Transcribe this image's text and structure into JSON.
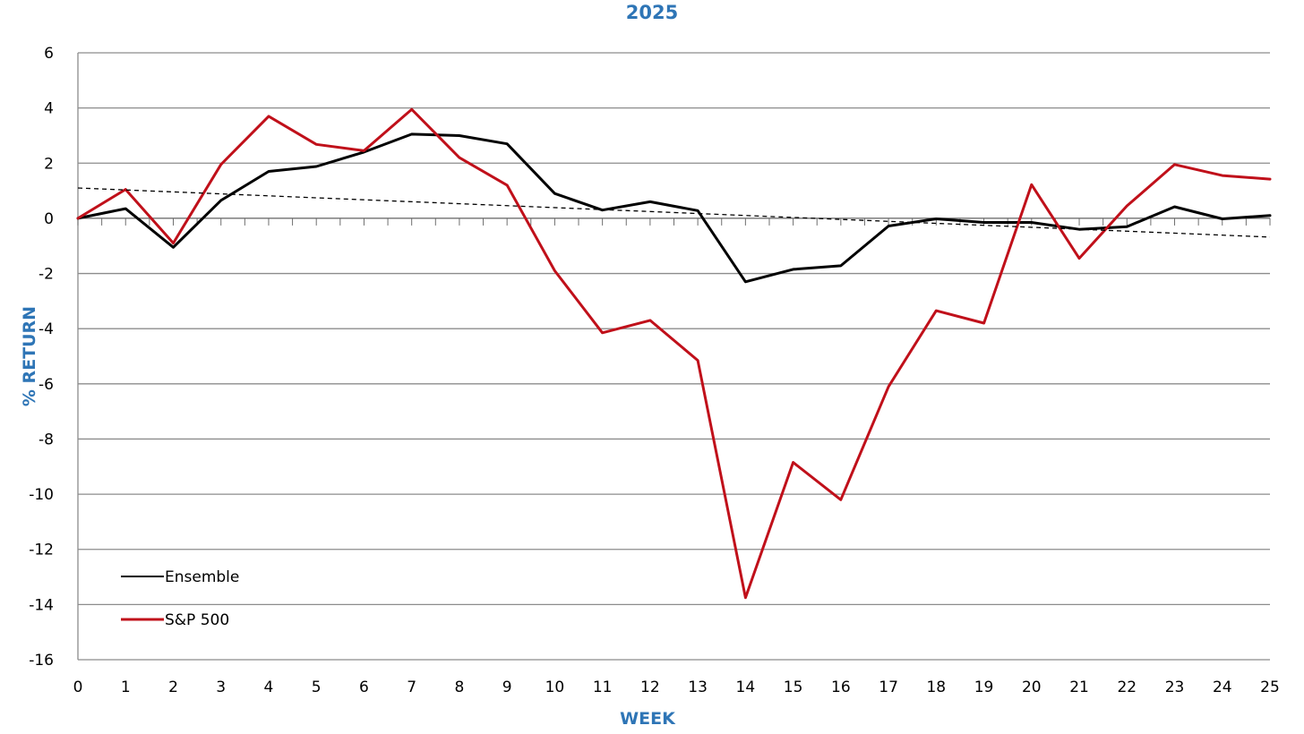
{
  "chart_data": {
    "type": "line",
    "subtitle": "2025",
    "xlabel": "WEEK",
    "ylabel": "% RETURN",
    "x": [
      0,
      1,
      2,
      3,
      4,
      5,
      6,
      7,
      8,
      9,
      10,
      11,
      12,
      13,
      14,
      15,
      16,
      17,
      18,
      19,
      20,
      21,
      22,
      23,
      24,
      25
    ],
    "xlim": [
      0,
      25
    ],
    "ylim": [
      -16,
      6
    ],
    "yticks": [
      6,
      4,
      2,
      0,
      -2,
      -4,
      -6,
      -8,
      -10,
      -12,
      -14,
      -16
    ],
    "grid": true,
    "legend_position": "bottom-left",
    "series": [
      {
        "name": "Ensemble",
        "color": "#000000",
        "values": [
          0,
          0.35,
          -1.05,
          0.65,
          1.7,
          1.88,
          2.4,
          3.05,
          3.0,
          2.7,
          0.9,
          0.3,
          0.6,
          0.28,
          -2.3,
          -1.85,
          -1.72,
          -0.28,
          -0.02,
          -0.15,
          -0.15,
          -0.4,
          -0.3,
          0.42,
          -0.02,
          0.1
        ]
      },
      {
        "name": "S&P 500",
        "color": "#c0101a",
        "values": [
          0,
          1.05,
          -0.9,
          1.95,
          3.7,
          2.68,
          2.45,
          3.95,
          2.2,
          1.2,
          -1.9,
          -4.15,
          -3.7,
          -5.15,
          -13.75,
          -8.85,
          -10.2,
          -6.1,
          -3.35,
          -3.8,
          1.22,
          -1.45,
          0.45,
          1.95,
          1.55,
          1.42
        ]
      },
      {
        "type": "trendline",
        "color": "#000000",
        "style": "dashed",
        "from": [
          0,
          1.1
        ],
        "to": [
          25,
          -0.68
        ]
      }
    ]
  }
}
